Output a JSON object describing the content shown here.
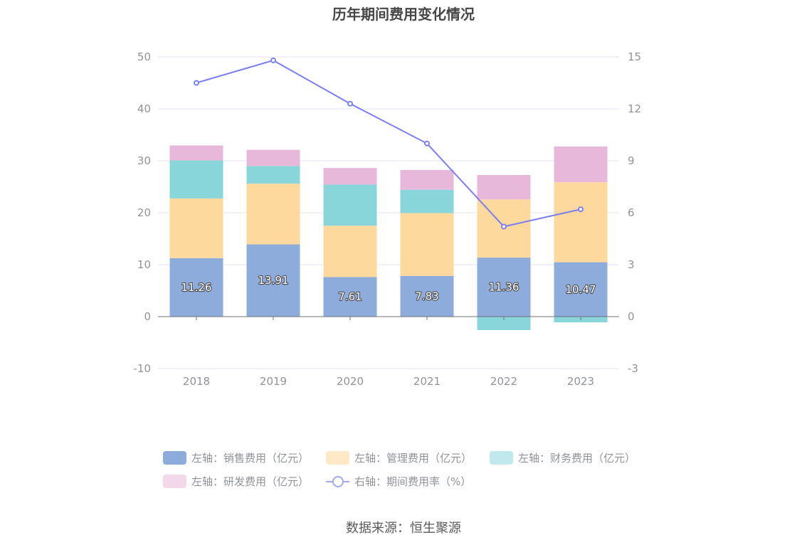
{
  "title": "历年期间费用变化情况",
  "source": "数据来源：恒生聚源",
  "colors": {
    "sales": "#8eacdb",
    "admin": "#fed99d",
    "finance": "#88d6da",
    "rd": "#e8b8da",
    "rate": "#7b7ff0",
    "grid": "#e3e6f3",
    "axis": "#6e7079"
  },
  "chart_data": {
    "type": "bar",
    "categories": [
      "2018",
      "2019",
      "2020",
      "2021",
      "2022",
      "2023"
    ],
    "left_axis": {
      "min": -10,
      "max": 50,
      "ticks": [
        "-10",
        "0",
        "10",
        "20",
        "30",
        "40",
        "50"
      ]
    },
    "right_axis": {
      "min": -3,
      "max": 15,
      "ticks": [
        "-3",
        "0",
        "3",
        "6",
        "9",
        "12",
        "15"
      ]
    },
    "series": [
      {
        "name": "左轴：销售费用（亿元）",
        "type": "bar",
        "color_key": "sales",
        "values": [
          11.26,
          13.91,
          7.61,
          7.83,
          11.36,
          10.47
        ],
        "labels": [
          "11.26",
          "13.91",
          "7.61",
          "7.83",
          "11.36",
          "10.47"
        ]
      },
      {
        "name": "左轴：管理费用（亿元）",
        "type": "bar",
        "color_key": "admin",
        "values": [
          11.5,
          11.7,
          9.9,
          12.1,
          11.2,
          15.4
        ]
      },
      {
        "name": "左轴：财务费用（亿元）",
        "type": "bar",
        "color_key": "finance",
        "values": [
          7.3,
          3.4,
          7.9,
          4.5,
          -2.6,
          -1.1
        ]
      },
      {
        "name": "左轴：研发费用（亿元）",
        "type": "bar",
        "color_key": "rd",
        "values": [
          2.9,
          3.1,
          3.2,
          3.8,
          4.7,
          6.9
        ]
      },
      {
        "name": "右轴：期间费用率（%）",
        "type": "line",
        "axis": "right",
        "color_key": "rate",
        "values": [
          13.5,
          14.8,
          12.3,
          10.0,
          5.2,
          6.2
        ]
      }
    ],
    "legend_position": "bottom"
  }
}
